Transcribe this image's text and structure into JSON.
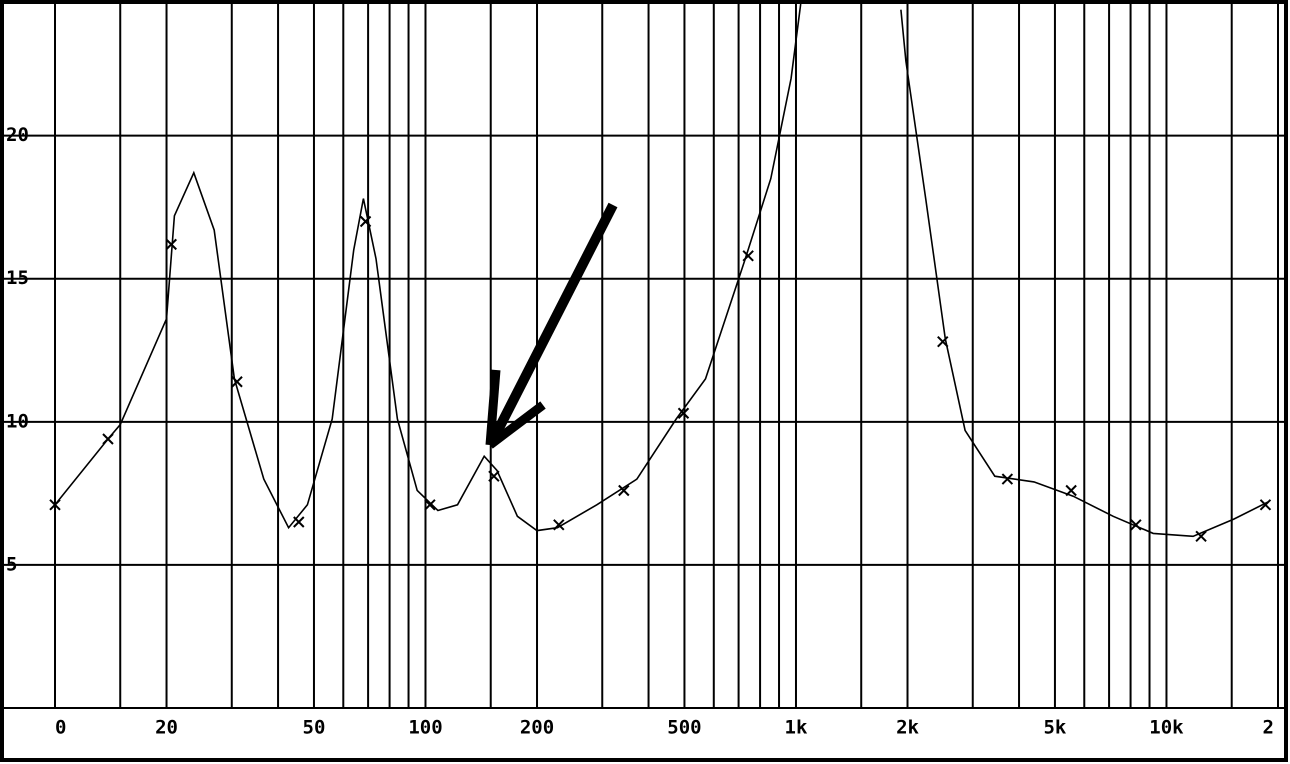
{
  "chart_data": {
    "type": "line",
    "xlog": true,
    "grid": true,
    "color": "#000000",
    "x": [
      10,
      13.9,
      15,
      20,
      21,
      23.7,
      26.9,
      30.5,
      36.6,
      42.7,
      48,
      56,
      64,
      68,
      73.5,
      84,
      95,
      108,
      122,
      144,
      156,
      177,
      200,
      227,
      290,
      372,
      475,
      570,
      730,
      855,
      970,
      1030,
      null,
      1920,
      1980,
      2240,
      2530,
      2860,
      3440,
      4390,
      5600,
      7180,
      9210,
      11800,
      15200,
      18800
    ],
    "values": [
      7.1,
      9.4,
      9.9,
      13.6,
      17.2,
      18.7,
      16.7,
      11.5,
      8.0,
      6.3,
      7.1,
      10.1,
      16.0,
      17.8,
      15.7,
      10.1,
      7.6,
      6.9,
      7.1,
      8.8,
      8.3,
      6.7,
      6.2,
      6.3,
      7.1,
      8.0,
      10.1,
      11.5,
      15.7,
      18.5,
      22.0,
      24.6,
      null,
      24.4,
      22.6,
      17.8,
      12.9,
      9.7,
      8.1,
      7.9,
      7.4,
      6.7,
      6.1,
      6.0,
      6.6,
      7.2
    ],
    "markers": {
      "x": [
        10,
        13.9,
        20.6,
        31.0,
        45.5,
        68.9,
        102.8,
        153,
        229,
        343,
        497,
        743,
        2490,
        3720,
        5530,
        8270,
        12400,
        18500
      ],
      "values": [
        7.1,
        9.4,
        16.2,
        11.4,
        6.5,
        17.0,
        7.1,
        8.1,
        6.4,
        7.6,
        10.3,
        15.8,
        12.8,
        8.0,
        7.6,
        6.4,
        6.0,
        7.1
      ]
    },
    "xlim": [
      10,
      20000
    ],
    "ylim": [
      0,
      24.6
    ],
    "yticks": [
      5,
      10,
      15,
      20
    ],
    "xticks": [
      {
        "value": 10,
        "label": "0"
      },
      20,
      50,
      100,
      200,
      500,
      {
        "value": 1000,
        "label": "1k"
      },
      {
        "value": 2000,
        "label": "2k"
      },
      {
        "value": 5000,
        "label": "5k"
      },
      {
        "value": 10000,
        "label": "10k"
      },
      {
        "value": 20000,
        "label": "2"
      }
    ],
    "xminor": [
      15,
      30,
      40,
      60,
      70,
      80,
      90,
      150,
      300,
      400,
      600,
      700,
      800,
      900,
      1500,
      3000,
      4000,
      6000,
      7000,
      8000,
      9000,
      15000
    ]
  }
}
